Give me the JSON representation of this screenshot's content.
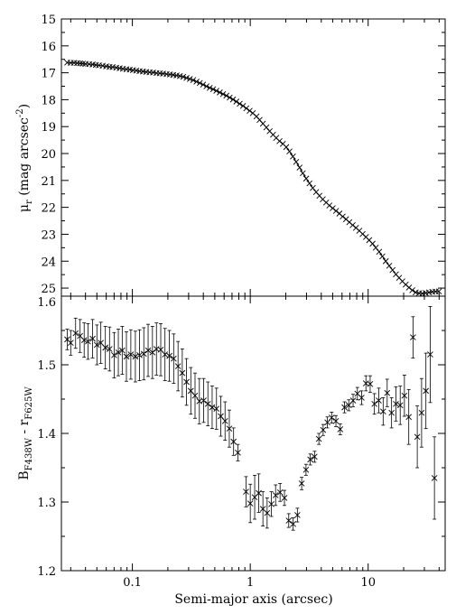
{
  "chart_data": [
    {
      "type": "scatter",
      "panel": "top",
      "title": "",
      "xlabel": "",
      "ylabel_parts": {
        "main": "μ",
        "sub": "r",
        "rest": " (mag arcsec",
        "sup": "-2",
        "close": ")"
      },
      "x_scale": "log",
      "xlim": [
        0.025,
        45
      ],
      "ylim": [
        25.3,
        15
      ],
      "y_inverted": true,
      "yticks": [
        15,
        16,
        17,
        18,
        19,
        20,
        21,
        22,
        23,
        24,
        25
      ],
      "ytick_labels": [
        "15",
        "16",
        "17",
        "18",
        "19",
        "20",
        "21",
        "22",
        "23",
        "24",
        "25"
      ],
      "marker": "x",
      "grid": false,
      "legend": "none",
      "series": [
        {
          "x": [
            0.028,
            0.03,
            0.032,
            0.034,
            0.036,
            0.038,
            0.04,
            0.043,
            0.046,
            0.049,
            0.052,
            0.056,
            0.06,
            0.064,
            0.068,
            0.073,
            0.078,
            0.083,
            0.089,
            0.095,
            0.101,
            0.108,
            0.115,
            0.123,
            0.131,
            0.14,
            0.15,
            0.16,
            0.171,
            0.182,
            0.195,
            0.208,
            0.222,
            0.237,
            0.253,
            0.27,
            0.288,
            0.307,
            0.328,
            0.35,
            0.373,
            0.398,
            0.425,
            0.453,
            0.484,
            0.516,
            0.551,
            0.588,
            0.627,
            0.669,
            0.714,
            0.762,
            0.813,
            0.868,
            0.926,
            0.988,
            1.05,
            1.13,
            1.2,
            1.28,
            1.37,
            1.46,
            1.56,
            1.66,
            1.77,
            1.89,
            2.02,
            2.15,
            2.3,
            2.45,
            2.62,
            2.79,
            2.98,
            3.18,
            3.39,
            3.62,
            3.86,
            4.12,
            4.4,
            4.69,
            5.0,
            5.34,
            5.7,
            6.08,
            6.49,
            6.92,
            7.39,
            7.88,
            8.41,
            8.97,
            9.58,
            10.2,
            10.9,
            11.6,
            12.4,
            13.2,
            14.1,
            15.1,
            16.1,
            17.2,
            18.3,
            19.5,
            20.8,
            22.2,
            23.7,
            25.3,
            27.0,
            28.8,
            30.7,
            32.8,
            35.0,
            37.3,
            39.8
          ],
          "y": [
            16.62,
            16.63,
            16.63,
            16.64,
            16.65,
            16.66,
            16.67,
            16.68,
            16.69,
            16.71,
            16.72,
            16.74,
            16.76,
            16.78,
            16.79,
            16.81,
            16.83,
            16.85,
            16.87,
            16.88,
            16.9,
            16.92,
            16.94,
            16.95,
            16.97,
            16.98,
            16.99,
            17.01,
            17.02,
            17.03,
            17.05,
            17.06,
            17.08,
            17.1,
            17.12,
            17.15,
            17.19,
            17.23,
            17.27,
            17.33,
            17.38,
            17.44,
            17.5,
            17.56,
            17.61,
            17.67,
            17.73,
            17.79,
            17.85,
            17.92,
            17.99,
            18.07,
            18.15,
            18.23,
            18.32,
            18.41,
            18.5,
            18.62,
            18.75,
            18.89,
            19.03,
            19.17,
            19.3,
            19.42,
            19.54,
            19.64,
            19.76,
            19.92,
            20.11,
            20.31,
            20.52,
            20.73,
            20.93,
            21.11,
            21.28,
            21.43,
            21.57,
            21.7,
            21.82,
            21.93,
            22.03,
            22.13,
            22.23,
            22.34,
            22.44,
            22.55,
            22.66,
            22.76,
            22.87,
            22.99,
            23.1,
            23.22,
            23.35,
            23.5,
            23.65,
            23.82,
            24.0,
            24.17,
            24.33,
            24.49,
            24.62,
            24.75,
            24.87,
            24.98,
            25.08,
            25.16,
            25.19,
            25.2,
            25.18,
            25.16,
            25.14,
            25.13,
            25.12
          ]
        }
      ]
    },
    {
      "type": "scatter",
      "panel": "bottom",
      "title": "",
      "xlabel": "Semi-major axis (arcsec)",
      "ylabel_parts": {
        "main": "B",
        "sub1": "F438W",
        "mid": " - r",
        "sub2": "F625W"
      },
      "x_scale": "log",
      "xlim": [
        0.025,
        45
      ],
      "xticks": [
        0.1,
        1,
        10
      ],
      "xtick_labels": [
        "0.1",
        "1",
        "10"
      ],
      "ylim": [
        1.2,
        1.6
      ],
      "yticks": [
        1.2,
        1.3,
        1.4,
        1.5,
        1.6
      ],
      "ytick_labels": [
        "1.2",
        "1.3",
        "1.4",
        "1.5",
        "1.6"
      ],
      "marker": "x",
      "grid": false,
      "legend": "none",
      "series": [
        {
          "x": [
            0.028,
            0.03,
            0.033,
            0.036,
            0.039,
            0.042,
            0.046,
            0.05,
            0.054,
            0.059,
            0.064,
            0.07,
            0.076,
            0.082,
            0.089,
            0.097,
            0.106,
            0.115,
            0.125,
            0.136,
            0.148,
            0.16,
            0.174,
            0.189,
            0.206,
            0.224,
            0.244,
            0.265,
            0.288,
            0.313,
            0.34,
            0.37,
            0.402,
            0.437,
            0.475,
            0.517,
            0.562,
            0.611,
            0.664,
            0.722,
            0.785,
            0.92,
            1.0,
            1.09,
            1.18,
            1.28,
            1.39,
            1.51,
            1.64,
            1.79,
            1.95,
            2.12,
            2.31,
            2.51,
            2.73,
            2.97,
            3.23,
            3.51,
            3.82,
            4.15,
            4.51,
            4.9,
            5.33,
            5.8,
            6.3,
            6.85,
            7.45,
            8.1,
            8.8,
            9.57,
            10.4,
            11.3,
            12.3,
            13.4,
            14.5,
            15.8,
            17.2,
            18.7,
            20.3,
            22.1,
            24.0,
            26.1,
            28.4,
            30.9,
            33.6,
            36.5
          ],
          "y": [
            1.537,
            1.532,
            1.546,
            1.542,
            1.536,
            1.534,
            1.538,
            1.529,
            1.532,
            1.525,
            1.523,
            1.514,
            1.518,
            1.521,
            1.512,
            1.515,
            1.512,
            1.514,
            1.516,
            1.521,
            1.518,
            1.523,
            1.522,
            1.515,
            1.513,
            1.509,
            1.498,
            1.488,
            1.475,
            1.462,
            1.455,
            1.447,
            1.448,
            1.443,
            1.438,
            1.436,
            1.425,
            1.418,
            1.407,
            1.388,
            1.372,
            1.315,
            1.298,
            1.307,
            1.313,
            1.29,
            1.284,
            1.297,
            1.31,
            1.314,
            1.306,
            1.273,
            1.268,
            1.281,
            1.327,
            1.347,
            1.362,
            1.366,
            1.392,
            1.405,
            1.416,
            1.423,
            1.418,
            1.406,
            1.438,
            1.441,
            1.448,
            1.458,
            1.452,
            1.473,
            1.472,
            1.443,
            1.448,
            1.432,
            1.459,
            1.43,
            1.443,
            1.441,
            1.455,
            1.424,
            1.54,
            1.395,
            1.43,
            1.462,
            1.515,
            1.335
          ],
          "err": [
            0.015,
            0.018,
            0.022,
            0.024,
            0.025,
            0.026,
            0.028,
            0.029,
            0.03,
            0.031,
            0.032,
            0.033,
            0.034,
            0.035,
            0.036,
            0.036,
            0.037,
            0.037,
            0.038,
            0.038,
            0.038,
            0.038,
            0.038,
            0.038,
            0.037,
            0.036,
            0.036,
            0.035,
            0.034,
            0.034,
            0.033,
            0.033,
            0.032,
            0.032,
            0.031,
            0.03,
            0.029,
            0.028,
            0.027,
            0.02,
            0.012,
            0.022,
            0.028,
            0.032,
            0.028,
            0.025,
            0.022,
            0.018,
            0.015,
            0.013,
            0.011,
            0.01,
            0.009,
            0.01,
            0.009,
            0.008,
            0.008,
            0.008,
            0.008,
            0.008,
            0.008,
            0.008,
            0.008,
            0.008,
            0.008,
            0.008,
            0.009,
            0.009,
            0.01,
            0.011,
            0.012,
            0.015,
            0.018,
            0.02,
            0.02,
            0.022,
            0.025,
            0.028,
            0.03,
            0.04,
            0.03,
            0.045,
            0.05,
            0.055,
            0.07,
            0.06
          ]
        }
      ]
    }
  ]
}
